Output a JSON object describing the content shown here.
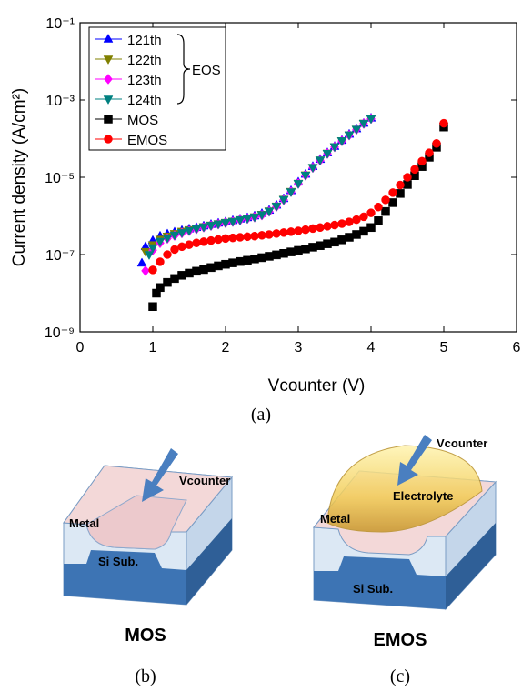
{
  "chart_data": {
    "type": "scatter",
    "xlabel": "Vcounter (V)",
    "ylabel": "Current density (A/cm²)",
    "caption": "(a)",
    "log_y": true,
    "xlim": [
      0,
      6
    ],
    "xticks": [
      0,
      1,
      2,
      3,
      4,
      5,
      6
    ],
    "ylim": [
      0.1,
      1e-09
    ],
    "yticks": [
      {
        "value": 0.1,
        "label": "10⁻¹"
      },
      {
        "value": 0.001,
        "label": "10⁻³"
      },
      {
        "value": 1e-05,
        "label": "10⁻⁵"
      },
      {
        "value": 1e-07,
        "label": "10⁻⁷"
      },
      {
        "value": 1e-09,
        "label": "10⁻⁹"
      }
    ],
    "legend_group_label": "EOS",
    "series": [
      {
        "name": "121th",
        "color": "#0000ff",
        "marker": "triangle-up",
        "x": [
          0.85,
          0.9,
          1.0,
          1.1,
          1.2,
          1.3,
          1.4,
          1.5,
          1.6,
          1.7,
          1.8,
          1.9,
          2.0,
          2.1,
          2.2,
          2.3,
          2.4,
          2.5,
          2.6,
          2.7,
          2.8,
          2.9,
          3.0,
          3.1,
          3.2,
          3.3,
          3.4,
          3.5,
          3.6,
          3.7,
          3.8,
          3.9,
          4.0
        ],
        "values": [
          6e-08,
          1.6e-07,
          2.3e-07,
          3e-07,
          3.4e-07,
          3.8e-07,
          4.2e-07,
          4.6e-07,
          5e-07,
          5.5e-07,
          6e-07,
          6.5e-07,
          7e-07,
          7.6e-07,
          8.3e-07,
          9e-07,
          1e-06,
          1.15e-06,
          1.4e-06,
          1.9e-06,
          2.8e-06,
          4.5e-06,
          7.5e-06,
          1.2e-05,
          1.9e-05,
          2.9e-05,
          4.3e-05,
          6.3e-05,
          9e-05,
          0.00013,
          0.00018,
          0.00025,
          0.00034
        ]
      },
      {
        "name": "122th",
        "color": "#808000",
        "marker": "triangle-down",
        "x": [
          0.9,
          1.0,
          1.1,
          1.2,
          1.3,
          1.4,
          1.5,
          1.6,
          1.7,
          1.8,
          1.9,
          2.0,
          2.1,
          2.2,
          2.3,
          2.4,
          2.5,
          2.6,
          2.7,
          2.8,
          2.9,
          3.0,
          3.1,
          3.2,
          3.3,
          3.4,
          3.5,
          3.6,
          3.7,
          3.8,
          3.9,
          4.0
        ],
        "values": [
          1.2e-07,
          1.8e-07,
          2.5e-07,
          3e-07,
          3.5e-07,
          4e-07,
          4.4e-07,
          4.8e-07,
          5.3e-07,
          5.8e-07,
          6.3e-07,
          6.8e-07,
          7.3e-07,
          8e-07,
          8.7e-07,
          9.5e-07,
          1.1e-06,
          1.35e-06,
          1.8e-06,
          2.7e-06,
          4.3e-06,
          7e-06,
          1.15e-05,
          1.8e-05,
          2.8e-05,
          4.2e-05,
          6.2e-05,
          8.8e-05,
          0.000125,
          0.000175,
          0.00025,
          0.00033
        ]
      },
      {
        "name": "123th",
        "color": "#ff00ff",
        "marker": "diamond",
        "x": [
          0.9,
          1.0,
          1.1,
          1.2,
          1.3,
          1.4,
          1.5,
          1.6,
          1.7,
          1.8,
          1.9,
          2.0,
          2.1,
          2.2,
          2.3,
          2.4,
          2.5,
          2.6,
          2.7,
          2.8,
          2.9,
          3.0,
          3.1,
          3.2,
          3.3,
          3.4,
          3.5,
          3.6,
          3.7,
          3.8,
          3.9,
          4.0
        ],
        "values": [
          3.8e-08,
          1.3e-07,
          2e-07,
          2.6e-07,
          3.1e-07,
          3.6e-07,
          4.1e-07,
          4.6e-07,
          5.1e-07,
          5.6e-07,
          6.1e-07,
          6.6e-07,
          7.1e-07,
          7.8e-07,
          8.5e-07,
          9.3e-07,
          1.05e-06,
          1.3e-06,
          1.75e-06,
          2.6e-06,
          4.2e-06,
          6.9e-06,
          1.12e-05,
          1.78e-05,
          2.75e-05,
          4.1e-05,
          6.1e-05,
          8.7e-05,
          0.000123,
          0.000173,
          0.000245,
          0.00033
        ]
      },
      {
        "name": "124th",
        "color": "#008080",
        "marker": "triangle-down",
        "x": [
          0.95,
          1.0,
          1.1,
          1.2,
          1.3,
          1.4,
          1.5,
          1.6,
          1.7,
          1.8,
          1.9,
          2.0,
          2.1,
          2.2,
          2.3,
          2.4,
          2.5,
          2.6,
          2.7,
          2.8,
          2.9,
          3.0,
          3.1,
          3.2,
          3.3,
          3.4,
          3.5,
          3.6,
          3.7,
          3.8,
          3.9,
          4.0
        ],
        "values": [
          1e-07,
          1.5e-07,
          2.2e-07,
          2.7e-07,
          3.2e-07,
          3.7e-07,
          4.2e-07,
          4.7e-07,
          5.2e-07,
          5.7e-07,
          6.2e-07,
          6.7e-07,
          7.2e-07,
          7.9e-07,
          8.6e-07,
          9.4e-07,
          1.08e-06,
          1.32e-06,
          1.78e-06,
          2.65e-06,
          4.2e-06,
          6.9e-06,
          1.13e-05,
          1.8e-05,
          2.8e-05,
          4.15e-05,
          6.2e-05,
          8.8e-05,
          0.000125,
          0.000175,
          0.00025,
          0.00033
        ]
      },
      {
        "name": "MOS",
        "color": "#000000",
        "marker": "square",
        "x": [
          1.0,
          1.05,
          1.1,
          1.2,
          1.3,
          1.4,
          1.5,
          1.6,
          1.7,
          1.8,
          1.9,
          2.0,
          2.1,
          2.2,
          2.3,
          2.4,
          2.5,
          2.6,
          2.7,
          2.8,
          2.9,
          3.0,
          3.1,
          3.2,
          3.3,
          3.4,
          3.5,
          3.6,
          3.7,
          3.8,
          3.9,
          4.0,
          4.1,
          4.2,
          4.3,
          4.4,
          4.5,
          4.6,
          4.7,
          4.8,
          4.9,
          5.0
        ],
        "values": [
          4.5e-09,
          1e-08,
          1.4e-08,
          1.9e-08,
          2.4e-08,
          2.9e-08,
          3.3e-08,
          3.7e-08,
          4.1e-08,
          4.6e-08,
          5.1e-08,
          5.6e-08,
          6.1e-08,
          6.6e-08,
          7.1e-08,
          7.7e-08,
          8.3e-08,
          9e-08,
          9.8e-08,
          1.07e-07,
          1.17e-07,
          1.28e-07,
          1.4e-07,
          1.55e-07,
          1.7e-07,
          1.9e-07,
          2.1e-07,
          2.4e-07,
          2.8e-07,
          3.3e-07,
          4e-07,
          5e-07,
          7.5e-07,
          1.3e-06,
          2.2e-06,
          3.8e-06,
          6.5e-06,
          1.1e-05,
          1.9e-05,
          3.3e-05,
          6e-05,
          0.0002
        ]
      },
      {
        "name": "EMOS",
        "color": "#ff0000",
        "marker": "circle",
        "x": [
          1.0,
          1.1,
          1.2,
          1.3,
          1.4,
          1.5,
          1.6,
          1.7,
          1.8,
          1.9,
          2.0,
          2.1,
          2.2,
          2.3,
          2.4,
          2.5,
          2.6,
          2.7,
          2.8,
          2.9,
          3.0,
          3.1,
          3.2,
          3.3,
          3.4,
          3.5,
          3.6,
          3.7,
          3.8,
          3.9,
          4.0,
          4.1,
          4.2,
          4.3,
          4.4,
          4.5,
          4.6,
          4.7,
          4.8,
          4.9,
          5.0
        ],
        "values": [
          4e-08,
          6.5e-08,
          1e-07,
          1.35e-07,
          1.6e-07,
          1.8e-07,
          2e-07,
          2.15e-07,
          2.3e-07,
          2.45e-07,
          2.6e-07,
          2.7e-07,
          2.8e-07,
          2.9e-07,
          3e-07,
          3.15e-07,
          3.3e-07,
          3.5e-07,
          3.7e-07,
          3.9e-07,
          4.1e-07,
          4.4e-07,
          4.7e-07,
          5e-07,
          5.4e-07,
          5.8e-07,
          6.3e-07,
          7e-07,
          8e-07,
          9.5e-07,
          1.2e-06,
          1.7e-06,
          2.6e-06,
          4e-06,
          6.3e-06,
          1e-05,
          1.6e-05,
          2.6e-05,
          4.3e-05,
          7.5e-05,
          0.00025
        ]
      }
    ]
  },
  "panels": [
    {
      "labels": [
        "Vcounter",
        "Metal",
        "Si Sub."
      ],
      "title": "MOS",
      "caption": "(b)"
    },
    {
      "labels": [
        "Vcounter",
        "Electrolyte",
        "Metal",
        "Si Sub."
      ],
      "title": "EMOS",
      "caption": "(c)"
    }
  ]
}
